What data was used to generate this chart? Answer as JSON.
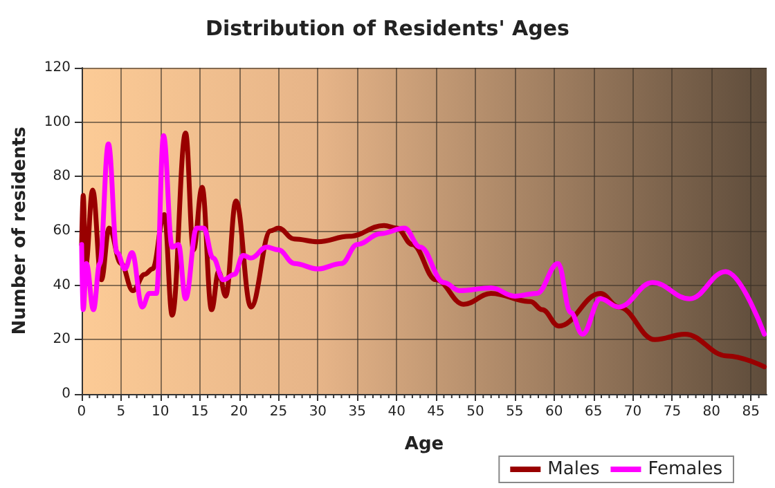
{
  "chart_data": {
    "type": "line",
    "title": "Distribution of Residents' Ages",
    "xlabel": "Age",
    "ylabel": "Number of residents",
    "xlim": [
      0,
      87
    ],
    "xticks": [
      0,
      5,
      10,
      15,
      20,
      25,
      30,
      35,
      40,
      45,
      50,
      55,
      60,
      65,
      70,
      75,
      80,
      85
    ],
    "ylim": [
      0,
      120
    ],
    "yticks": [
      0,
      20,
      40,
      60,
      80,
      100,
      120
    ],
    "grid": true,
    "legend": "bottom right",
    "marker": "none",
    "line_style": "solid",
    "series": [
      {
        "name": "Males",
        "color": "#990000",
        "x": [
          0,
          0.2,
          0.5,
          1.4,
          2.5,
          3.5,
          5,
          6.5,
          8,
          9,
          10.5,
          11.5,
          13.2,
          14.2,
          15.3,
          16.5,
          17.4,
          18.3,
          19.6,
          21.5,
          24,
          25,
          27,
          30,
          34,
          38.4,
          40,
          42,
          45,
          48.5,
          52,
          57,
          58.5,
          60.6,
          65.9,
          68.2,
          72.8,
          76.6,
          82,
          86.7
        ],
        "values": [
          55,
          73,
          47,
          75,
          42,
          61,
          48,
          38,
          44,
          46,
          66,
          29,
          96,
          53,
          76,
          31,
          45,
          36,
          71,
          32,
          60,
          61,
          57,
          56,
          58,
          62,
          61,
          55,
          42,
          33,
          37,
          34,
          31,
          25,
          37,
          32,
          20,
          22,
          14,
          10
        ]
      },
      {
        "name": "Females",
        "color": "#ff00ff",
        "x": [
          0,
          0.2,
          0.6,
          1.5,
          2.3,
          3.4,
          4.5,
          5.5,
          6.4,
          7.7,
          8.6,
          9.5,
          10.4,
          11.5,
          12.3,
          13.2,
          14.6,
          15.5,
          16.7,
          18,
          19.4,
          20.5,
          21.5,
          23.5,
          25,
          27,
          30,
          33,
          35,
          38,
          41,
          43,
          46,
          48,
          52,
          55,
          57.8,
          60.5,
          62.1,
          63.6,
          65.9,
          68.2,
          72.5,
          77.2,
          81.8,
          86.7
        ],
        "values": [
          55,
          31,
          48,
          31,
          48,
          92,
          52,
          46,
          52,
          32,
          37,
          37,
          95,
          54,
          55,
          35,
          61,
          61,
          50,
          42,
          44,
          51,
          50,
          54,
          53,
          48,
          46,
          48,
          55,
          59,
          61,
          54,
          41,
          38,
          39,
          36,
          37,
          48,
          30,
          22,
          35,
          32,
          41,
          35,
          45,
          22
        ]
      }
    ]
  }
}
